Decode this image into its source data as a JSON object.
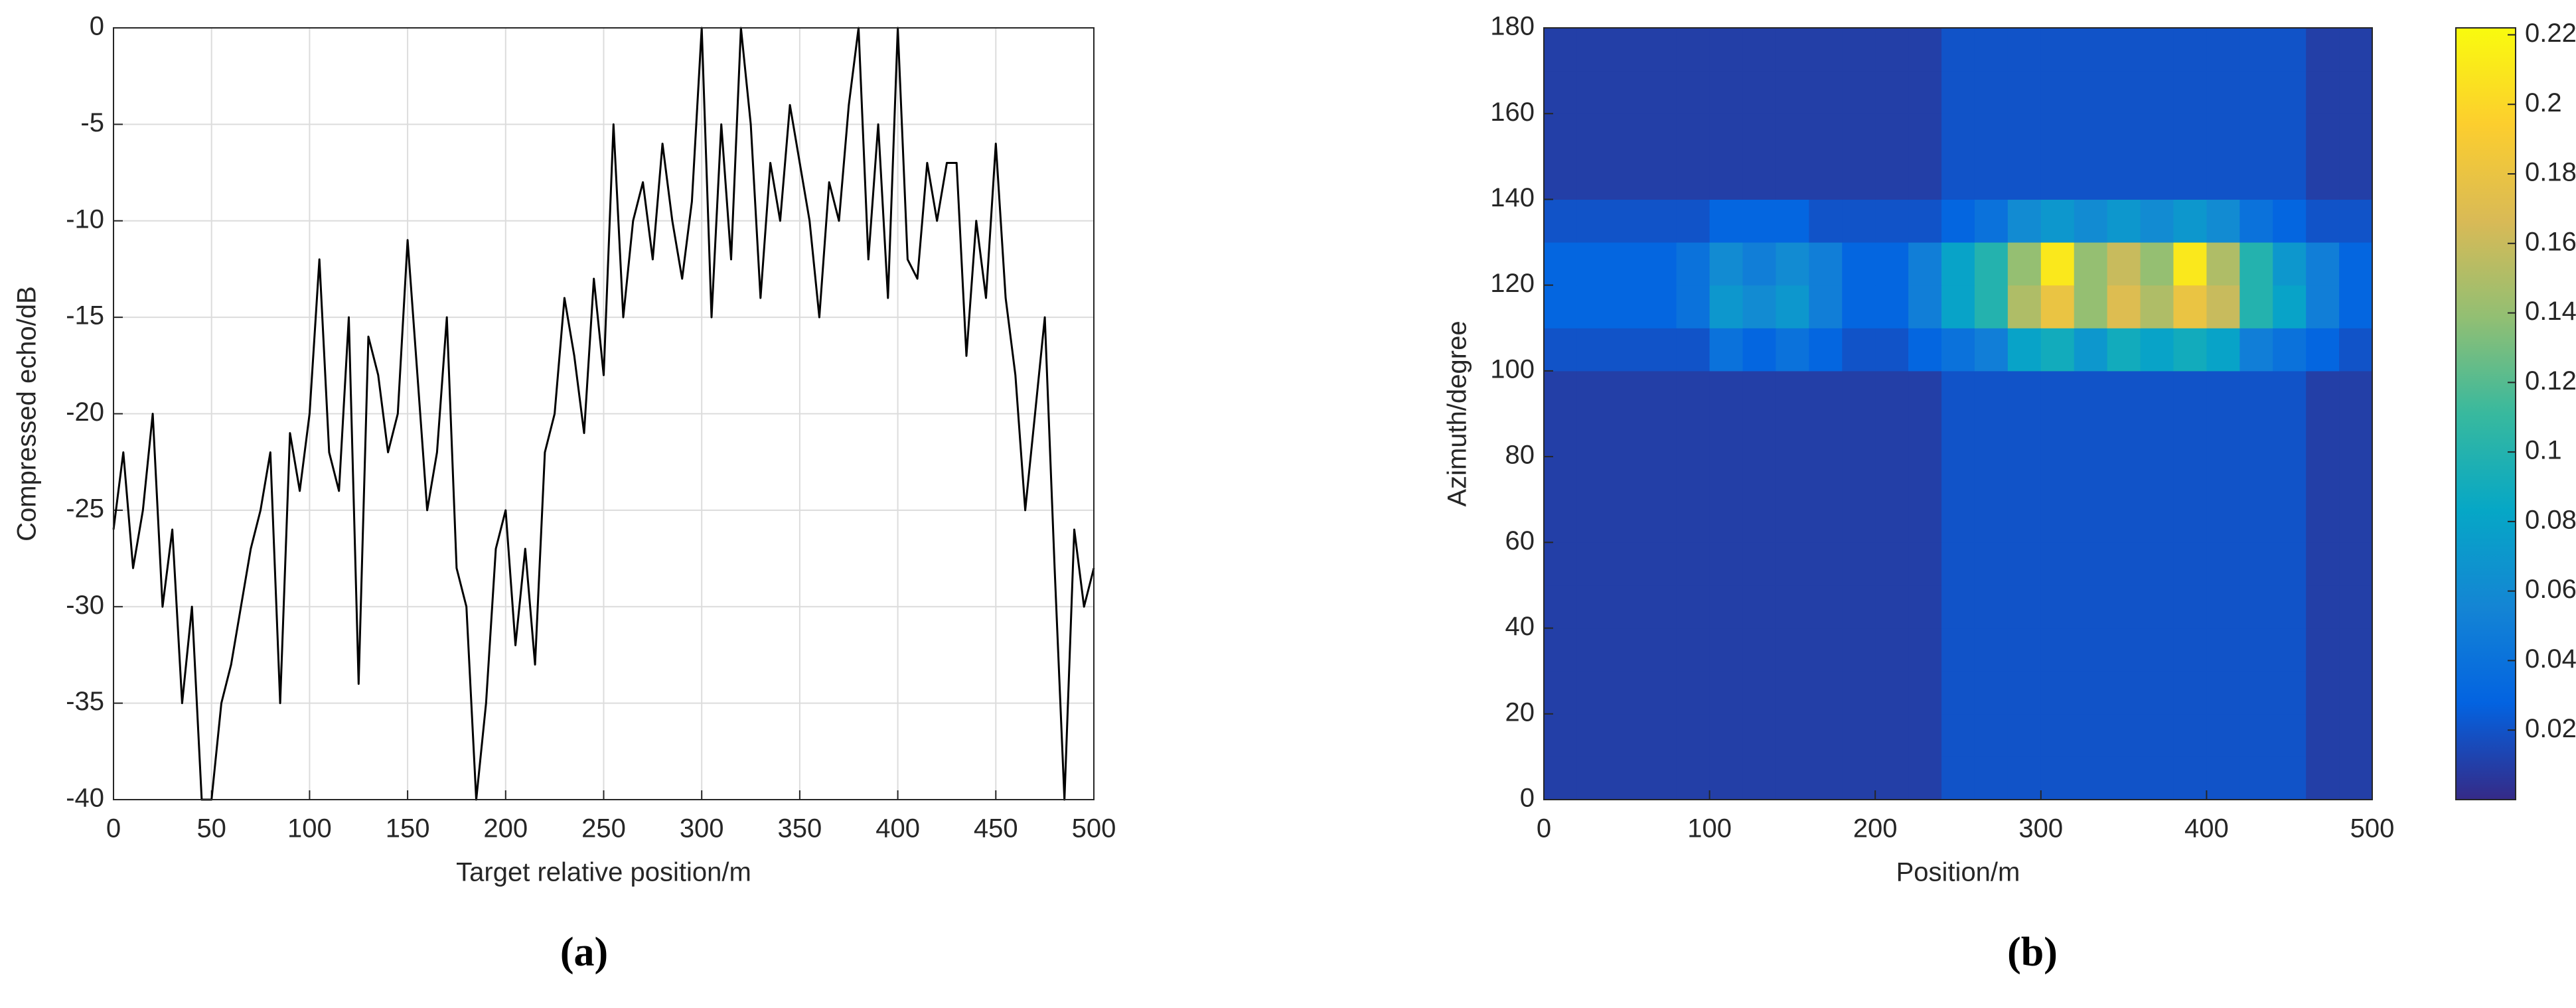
{
  "chart_data": [
    {
      "type": "line",
      "caption": "(a)",
      "xlabel": "Target relative position/m",
      "ylabel": "Compressed echo/dB",
      "xlim": [
        0,
        500
      ],
      "ylim": [
        -40,
        0
      ],
      "xticks": [
        0,
        50,
        100,
        150,
        200,
        250,
        300,
        350,
        400,
        450,
        500
      ],
      "yticks": [
        -40,
        -35,
        -30,
        -25,
        -20,
        -15,
        -10,
        -5,
        0
      ],
      "grid": true,
      "color": "#000000",
      "x": [
        0,
        5,
        10,
        15,
        20,
        25,
        30,
        35,
        40,
        45,
        50,
        55,
        60,
        65,
        70,
        75,
        80,
        85,
        90,
        95,
        100,
        105,
        110,
        115,
        120,
        125,
        130,
        135,
        140,
        145,
        150,
        155,
        160,
        165,
        170,
        175,
        180,
        185,
        190,
        195,
        200,
        205,
        210,
        215,
        220,
        225,
        230,
        235,
        240,
        245,
        250,
        255,
        260,
        265,
        270,
        275,
        280,
        285,
        290,
        295,
        300,
        305,
        310,
        315,
        320,
        325,
        330,
        335,
        340,
        345,
        350,
        355,
        360,
        365,
        370,
        375,
        380,
        385,
        390,
        395,
        400,
        405,
        410,
        415,
        420,
        425,
        430,
        435,
        440,
        445,
        450,
        455,
        460,
        465,
        470,
        475,
        480,
        485,
        490,
        495,
        500
      ],
      "values": [
        -26,
        -22,
        -28,
        -25,
        -20,
        -30,
        -26,
        -35,
        -30,
        -40,
        -40,
        -35,
        -33,
        -30,
        -27,
        -25,
        -22,
        -35,
        -21,
        -24,
        -20,
        -12,
        -22,
        -24,
        -15,
        -34,
        -16,
        -18,
        -22,
        -20,
        -11,
        -18,
        -25,
        -22,
        -15,
        -28,
        -30,
        -40,
        -35,
        -27,
        -25,
        -32,
        -27,
        -33,
        -22,
        -20,
        -14,
        -17,
        -21,
        -13,
        -18,
        -5,
        -15,
        -10,
        -8,
        -12,
        -6,
        -10,
        -13,
        -9,
        0,
        -15,
        -5,
        -12,
        0,
        -5,
        -14,
        -7,
        -10,
        -4,
        -7,
        -10,
        -15,
        -8,
        -10,
        -4,
        0,
        -12,
        -5,
        -14,
        0,
        -12,
        -13,
        -7,
        -10,
        -7,
        -7,
        -17,
        -10,
        -14,
        -6,
        -14,
        -18,
        -25,
        -20,
        -15,
        -28,
        -40,
        -26,
        -30,
        -28
      ]
    },
    {
      "type": "heatmap",
      "caption": "(b)",
      "xlabel": "Position/m",
      "ylabel": "Azimuth/degree",
      "colormap": "parula",
      "xlim": [
        0,
        500
      ],
      "ylim": [
        0,
        180
      ],
      "xticks": [
        0,
        100,
        200,
        300,
        400,
        500
      ],
      "yticks": [
        0,
        20,
        40,
        60,
        80,
        100,
        120,
        140,
        160,
        180
      ],
      "clim": [
        0,
        0.222
      ],
      "cticks": [
        0.02,
        0.04,
        0.06,
        0.08,
        0.1,
        0.12,
        0.14,
        0.16,
        0.18,
        0.2,
        0.22
      ],
      "x_edges": [
        0,
        20,
        40,
        60,
        80,
        100,
        120,
        140,
        160,
        180,
        200,
        220,
        240,
        260,
        280,
        300,
        320,
        340,
        360,
        380,
        400,
        420,
        440,
        460,
        480,
        500
      ],
      "y_edges": [
        0,
        10,
        20,
        30,
        40,
        50,
        60,
        70,
        80,
        90,
        100,
        110,
        120,
        130,
        140,
        150,
        160,
        170,
        180
      ],
      "z": [
        [
          0.01,
          0.01,
          0.01,
          0.01,
          0.01,
          0.01,
          0.01,
          0.01,
          0.01,
          0.01,
          0.01,
          0.01,
          0.02,
          0.02,
          0.02,
          0.02,
          0.02,
          0.02,
          0.02,
          0.02,
          0.02,
          0.02,
          0.02,
          0.01,
          0.01
        ],
        [
          0.01,
          0.01,
          0.01,
          0.01,
          0.01,
          0.01,
          0.01,
          0.01,
          0.01,
          0.01,
          0.01,
          0.01,
          0.02,
          0.02,
          0.02,
          0.02,
          0.02,
          0.02,
          0.02,
          0.02,
          0.02,
          0.02,
          0.02,
          0.01,
          0.01
        ],
        [
          0.01,
          0.01,
          0.01,
          0.01,
          0.01,
          0.01,
          0.01,
          0.01,
          0.01,
          0.01,
          0.01,
          0.01,
          0.02,
          0.02,
          0.02,
          0.02,
          0.02,
          0.02,
          0.02,
          0.02,
          0.02,
          0.02,
          0.02,
          0.01,
          0.01
        ],
        [
          0.01,
          0.01,
          0.01,
          0.01,
          0.01,
          0.01,
          0.01,
          0.01,
          0.01,
          0.01,
          0.01,
          0.01,
          0.02,
          0.02,
          0.02,
          0.02,
          0.02,
          0.02,
          0.02,
          0.02,
          0.02,
          0.02,
          0.02,
          0.01,
          0.01
        ],
        [
          0.01,
          0.01,
          0.01,
          0.01,
          0.01,
          0.01,
          0.01,
          0.01,
          0.01,
          0.01,
          0.01,
          0.01,
          0.02,
          0.02,
          0.02,
          0.02,
          0.02,
          0.02,
          0.02,
          0.02,
          0.02,
          0.02,
          0.02,
          0.01,
          0.01
        ],
        [
          0.01,
          0.01,
          0.01,
          0.01,
          0.01,
          0.01,
          0.01,
          0.01,
          0.01,
          0.01,
          0.01,
          0.01,
          0.02,
          0.02,
          0.02,
          0.02,
          0.02,
          0.02,
          0.02,
          0.02,
          0.02,
          0.02,
          0.02,
          0.01,
          0.01
        ],
        [
          0.01,
          0.01,
          0.01,
          0.01,
          0.01,
          0.01,
          0.01,
          0.01,
          0.01,
          0.01,
          0.01,
          0.01,
          0.02,
          0.02,
          0.02,
          0.02,
          0.02,
          0.02,
          0.02,
          0.02,
          0.02,
          0.02,
          0.02,
          0.01,
          0.01
        ],
        [
          0.01,
          0.01,
          0.01,
          0.01,
          0.01,
          0.01,
          0.01,
          0.01,
          0.01,
          0.01,
          0.01,
          0.01,
          0.02,
          0.02,
          0.02,
          0.02,
          0.02,
          0.02,
          0.02,
          0.02,
          0.02,
          0.02,
          0.02,
          0.01,
          0.01
        ],
        [
          0.01,
          0.01,
          0.01,
          0.01,
          0.01,
          0.01,
          0.01,
          0.01,
          0.01,
          0.01,
          0.01,
          0.01,
          0.02,
          0.02,
          0.02,
          0.02,
          0.02,
          0.02,
          0.02,
          0.02,
          0.02,
          0.02,
          0.02,
          0.01,
          0.01
        ],
        [
          0.01,
          0.01,
          0.01,
          0.01,
          0.01,
          0.01,
          0.01,
          0.01,
          0.01,
          0.01,
          0.01,
          0.01,
          0.02,
          0.02,
          0.02,
          0.02,
          0.02,
          0.02,
          0.02,
          0.02,
          0.02,
          0.02,
          0.02,
          0.01,
          0.01
        ],
        [
          0.02,
          0.02,
          0.02,
          0.02,
          0.02,
          0.04,
          0.03,
          0.04,
          0.03,
          0.02,
          0.02,
          0.03,
          0.04,
          0.05,
          0.08,
          0.09,
          0.07,
          0.09,
          0.08,
          0.09,
          0.08,
          0.05,
          0.04,
          0.03,
          0.02
        ],
        [
          0.03,
          0.03,
          0.03,
          0.03,
          0.04,
          0.07,
          0.06,
          0.07,
          0.05,
          0.03,
          0.03,
          0.05,
          0.08,
          0.1,
          0.15,
          0.18,
          0.14,
          0.17,
          0.15,
          0.18,
          0.16,
          0.1,
          0.08,
          0.05,
          0.03
        ],
        [
          0.03,
          0.03,
          0.03,
          0.03,
          0.04,
          0.06,
          0.05,
          0.06,
          0.05,
          0.03,
          0.03,
          0.05,
          0.08,
          0.1,
          0.14,
          0.21,
          0.14,
          0.16,
          0.14,
          0.21,
          0.15,
          0.1,
          0.07,
          0.05,
          0.03
        ],
        [
          0.02,
          0.02,
          0.02,
          0.02,
          0.02,
          0.03,
          0.03,
          0.03,
          0.02,
          0.02,
          0.02,
          0.02,
          0.03,
          0.04,
          0.06,
          0.07,
          0.06,
          0.07,
          0.06,
          0.07,
          0.06,
          0.04,
          0.03,
          0.02,
          0.02
        ],
        [
          0.01,
          0.01,
          0.01,
          0.01,
          0.01,
          0.01,
          0.01,
          0.01,
          0.01,
          0.01,
          0.01,
          0.01,
          0.02,
          0.02,
          0.02,
          0.02,
          0.02,
          0.02,
          0.02,
          0.02,
          0.02,
          0.02,
          0.02,
          0.01,
          0.01
        ],
        [
          0.01,
          0.01,
          0.01,
          0.01,
          0.01,
          0.01,
          0.01,
          0.01,
          0.01,
          0.01,
          0.01,
          0.01,
          0.02,
          0.02,
          0.02,
          0.02,
          0.02,
          0.02,
          0.02,
          0.02,
          0.02,
          0.02,
          0.02,
          0.01,
          0.01
        ],
        [
          0.01,
          0.01,
          0.01,
          0.01,
          0.01,
          0.01,
          0.01,
          0.01,
          0.01,
          0.01,
          0.01,
          0.01,
          0.02,
          0.02,
          0.02,
          0.02,
          0.02,
          0.02,
          0.02,
          0.02,
          0.02,
          0.02,
          0.02,
          0.01,
          0.01
        ],
        [
          0.01,
          0.01,
          0.01,
          0.01,
          0.01,
          0.01,
          0.01,
          0.01,
          0.01,
          0.01,
          0.01,
          0.01,
          0.02,
          0.02,
          0.02,
          0.02,
          0.02,
          0.02,
          0.02,
          0.02,
          0.02,
          0.02,
          0.02,
          0.01,
          0.01
        ]
      ]
    }
  ]
}
